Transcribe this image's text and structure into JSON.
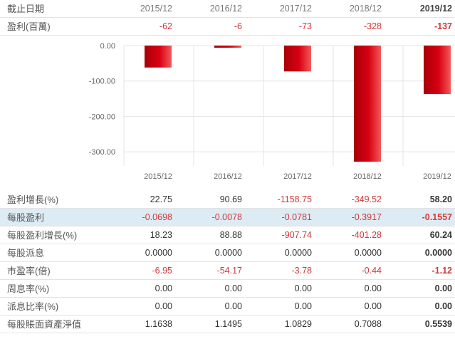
{
  "header": {
    "label": "截止日期",
    "years": [
      "2015/12",
      "2016/12",
      "2017/12",
      "2018/12",
      "2019/12"
    ]
  },
  "earnings": {
    "label": "盈利(百萬)",
    "values": [
      "-62",
      "-6",
      "-73",
      "-328",
      "-137"
    ]
  },
  "chart_data": {
    "type": "bar",
    "categories": [
      "2015/12",
      "2016/12",
      "2017/12",
      "2018/12",
      "2019/12"
    ],
    "values": [
      -62,
      -6,
      -73,
      -328,
      -137
    ],
    "ylim": [
      -340,
      0
    ],
    "yticks": [
      "0.00",
      "-100.00",
      "-200.00",
      "-300.00"
    ],
    "ytick_values": [
      0,
      -100,
      -200,
      -300
    ],
    "grid": true,
    "bar_color": "#c8000b",
    "bar_highlight": "#f05050"
  },
  "rows": [
    {
      "label": "盈利增長(%)",
      "values": [
        "22.75",
        "90.69",
        "-1158.75",
        "-349.52",
        "58.20"
      ],
      "highlight": false
    },
    {
      "label": "每股盈利",
      "values": [
        "-0.0698",
        "-0.0078",
        "-0.0781",
        "-0.3917",
        "-0.1557"
      ],
      "highlight": true
    },
    {
      "label": "每股盈利增長(%)",
      "values": [
        "18.23",
        "88.88",
        "-907.74",
        "-401.28",
        "60.24"
      ],
      "highlight": false
    },
    {
      "label": "每股派息",
      "values": [
        "0.0000",
        "0.0000",
        "0.0000",
        "0.0000",
        "0.0000"
      ],
      "highlight": false
    },
    {
      "label": "市盈率(倍)",
      "values": [
        "-6.95",
        "-54.17",
        "-3.78",
        "-0.44",
        "-1.12"
      ],
      "highlight": false
    },
    {
      "label": "周息率(%)",
      "values": [
        "0.00",
        "0.00",
        "0.00",
        "0.00",
        "0.00"
      ],
      "highlight": false
    },
    {
      "label": "派息比率(%)",
      "values": [
        "0.00",
        "0.00",
        "0.00",
        "0.00",
        "0.00"
      ],
      "highlight": false
    },
    {
      "label": "每股賬面資產淨值",
      "values": [
        "1.1638",
        "1.1495",
        "1.0829",
        "0.7088",
        "0.5539"
      ],
      "highlight": false
    }
  ],
  "colors": {
    "negative": "#d13a3a",
    "positive": "#333333",
    "highlight_row": "#ddebf4"
  }
}
